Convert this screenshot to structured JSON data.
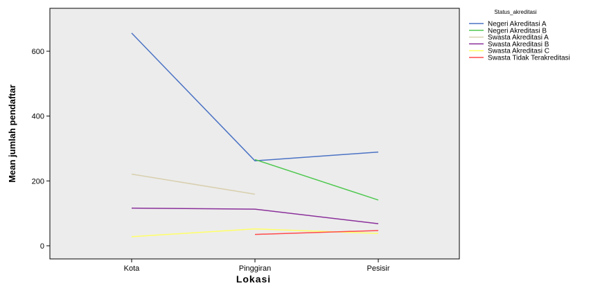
{
  "chart_data": {
    "type": "line",
    "title": "",
    "xlabel": "Lokasi",
    "ylabel": "Mean jumlah pendaftar",
    "categories": [
      "Kota",
      "Pinggiran",
      "Pesisir"
    ],
    "ylim": [
      -40,
      730
    ],
    "yticks": [
      0,
      200,
      400,
      600
    ],
    "grid": false,
    "legend_position": "right",
    "legend_title": "Status_akreditasi",
    "series": [
      {
        "name": "Negeri Akreditasi A",
        "color": "#4a72c4",
        "values": [
          656,
          262,
          289
        ]
      },
      {
        "name": "Negeri Akreditasi B",
        "color": "#4fc84f",
        "values": [
          null,
          266,
          141
        ]
      },
      {
        "name": "Swasta Akreditasi A",
        "color": "#d8cfae",
        "values": [
          221,
          159,
          null
        ]
      },
      {
        "name": "Swasta Akreditasi B",
        "color": "#8a2f9a",
        "values": [
          116,
          113,
          68
        ]
      },
      {
        "name": "Swasta Akreditasi C",
        "color": "#ffff66",
        "values": [
          28,
          52,
          38
        ]
      },
      {
        "name": "Swasta Tidak Terakreditasi",
        "color": "#ff4a4a",
        "values": [
          null,
          35,
          47
        ]
      }
    ]
  }
}
